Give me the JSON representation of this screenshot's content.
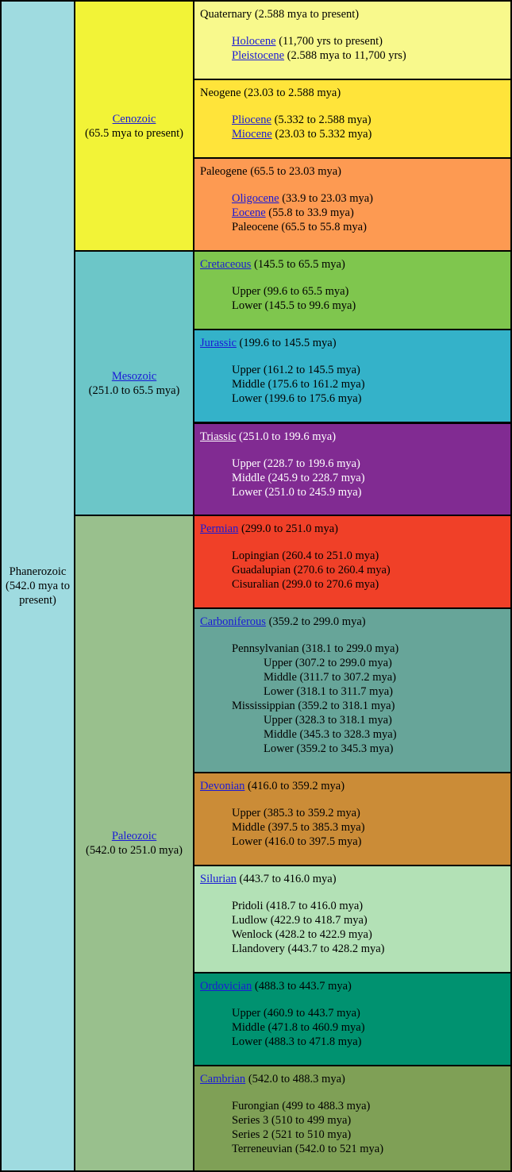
{
  "eon": {
    "name": "Phanerozoic",
    "range": "(542.0 mya to present)",
    "color": "#9fdbe0"
  },
  "eras": [
    {
      "name": "Cenozoic",
      "range": "(65.5 mya to present)",
      "color": "#f2f337"
    },
    {
      "name": "Mesozoic",
      "range": "(251.0 to 65.5 mya)",
      "color": "#6cc6c8"
    },
    {
      "name": "Paleozoic",
      "range": "(542.0 to 251.0 mya)",
      "color": "#99c08d"
    }
  ],
  "periods": [
    {
      "name": "Quaternary",
      "linked": false,
      "range": "(2.588 mya to present)",
      "color": "#f8f98c",
      "subs": [
        {
          "name": "Holocene",
          "linked": true,
          "range": "(11,700 yrs to present)"
        },
        {
          "name": "Pleistocene",
          "linked": true,
          "range": "(2.588 mya to 11,700 yrs)"
        }
      ]
    },
    {
      "name": "Neogene",
      "linked": false,
      "range": "(23.03 to 2.588 mya)",
      "color": "#ffe43a",
      "subs": [
        {
          "name": "Pliocene",
          "linked": true,
          "range": "(5.332 to 2.588 mya)"
        },
        {
          "name": "Miocene",
          "linked": true,
          "range": "(23.03 to 5.332 mya)"
        }
      ]
    },
    {
      "name": "Paleogene",
      "linked": false,
      "range": "(65.5 to 23.03 mya)",
      "color": "#fd9a52",
      "subs": [
        {
          "name": "Oligocene",
          "linked": true,
          "range": "(33.9 to 23.03 mya)"
        },
        {
          "name": "Eocene",
          "linked": true,
          "range": "(55.8 to 33.9 mya)"
        },
        {
          "name": "Paleocene",
          "linked": false,
          "range": "(65.5 to 55.8 mya)"
        }
      ]
    },
    {
      "name": "Cretaceous",
      "linked": true,
      "range": "(145.5 to 65.5 mya)",
      "color": "#7fc64e",
      "subs": [
        {
          "text": "Upper (99.6 to 65.5 mya)"
        },
        {
          "text": "Lower (145.5 to 99.6 mya)"
        }
      ]
    },
    {
      "name": "Jurassic",
      "linked": true,
      "range": "(199.6 to 145.5 mya)",
      "color": "#34b2c9",
      "subs": [
        {
          "text": "Upper (161.2 to 145.5 mya)"
        },
        {
          "text": "Middle (175.6 to 161.2 mya)"
        },
        {
          "text": "Lower (199.6 to 175.6 mya)"
        }
      ]
    },
    {
      "name": "Triassic",
      "linked": true,
      "range": "(251.0 to 199.6 mya)",
      "color": "#812b92",
      "white": true,
      "subs": [
        {
          "text": "Upper (228.7 to 199.6 mya)"
        },
        {
          "text": "Middle (245.9 to 228.7 mya)"
        },
        {
          "text": "Lower (251.0 to 245.9 mya)"
        }
      ]
    },
    {
      "name": "Permian",
      "linked": true,
      "range": "(299.0 to 251.0 mya)",
      "color": "#f04028",
      "subs": [
        {
          "text": "Lopingian (260.4 to 251.0 mya)"
        },
        {
          "text": "Guadalupian (270.6 to 260.4 mya)"
        },
        {
          "text": "Cisuralian (299.0 to 270.6 mya)"
        }
      ]
    },
    {
      "name": "Carboniferous",
      "linked": true,
      "range": "(359.2 to 299.0 mya)",
      "color": "#67a599",
      "subs": [
        {
          "text": "Pennsylvanian (318.1 to 299.0 mya)"
        },
        {
          "text": "Upper (307.2 to 299.0 mya)",
          "indent": 2
        },
        {
          "text": "Middle (311.7 to 307.2 mya)",
          "indent": 2
        },
        {
          "text": "Lower (318.1 to 311.7 mya)",
          "indent": 2
        },
        {
          "text": "Mississippian (359.2 to 318.1 mya)"
        },
        {
          "text": "Upper (328.3 to 318.1 mya)",
          "indent": 2
        },
        {
          "text": "Middle (345.3 to 328.3 mya)",
          "indent": 2
        },
        {
          "text": "Lower (359.2 to 345.3 mya)",
          "indent": 2
        }
      ]
    },
    {
      "name": "Devonian",
      "linked": true,
      "range": "(416.0 to 359.2 mya)",
      "color": "#cb8c37",
      "subs": [
        {
          "text": "Upper (385.3 to 359.2 mya)"
        },
        {
          "text": "Middle (397.5 to 385.3 mya)"
        },
        {
          "text": "Lower (416.0 to 397.5 mya)"
        }
      ]
    },
    {
      "name": "Silurian",
      "linked": true,
      "range": "(443.7 to 416.0 mya)",
      "color": "#b3e1b6",
      "subs": [
        {
          "text": "Pridoli (418.7 to 416.0 mya)"
        },
        {
          "text": "Ludlow (422.9 to 418.7 mya)"
        },
        {
          "text": "Wenlock (428.2 to 422.9 mya)"
        },
        {
          "text": "Llandovery (443.7 to 428.2 mya)"
        }
      ]
    },
    {
      "name": "Ordovician",
      "linked": true,
      "range": "(488.3 to 443.7 mya)",
      "color": "#009270",
      "subs": [
        {
          "text": "Upper (460.9 to 443.7 mya)"
        },
        {
          "text": "Middle (471.8 to 460.9 mya)"
        },
        {
          "text": "Lower (488.3 to 471.8 mya)"
        }
      ]
    },
    {
      "name": "Cambrian",
      "linked": true,
      "range": "(542.0 to 488.3 mya)",
      "color": "#7fa056",
      "subs": [
        {
          "text": "Furongian (499 to 488.3 mya)"
        },
        {
          "text": "Series 3 (510 to 499 mya)"
        },
        {
          "text": "Series 2 (521 to 510 mya)"
        },
        {
          "text": "Terreneuvian (542.0 to 521 mya)"
        }
      ]
    }
  ]
}
